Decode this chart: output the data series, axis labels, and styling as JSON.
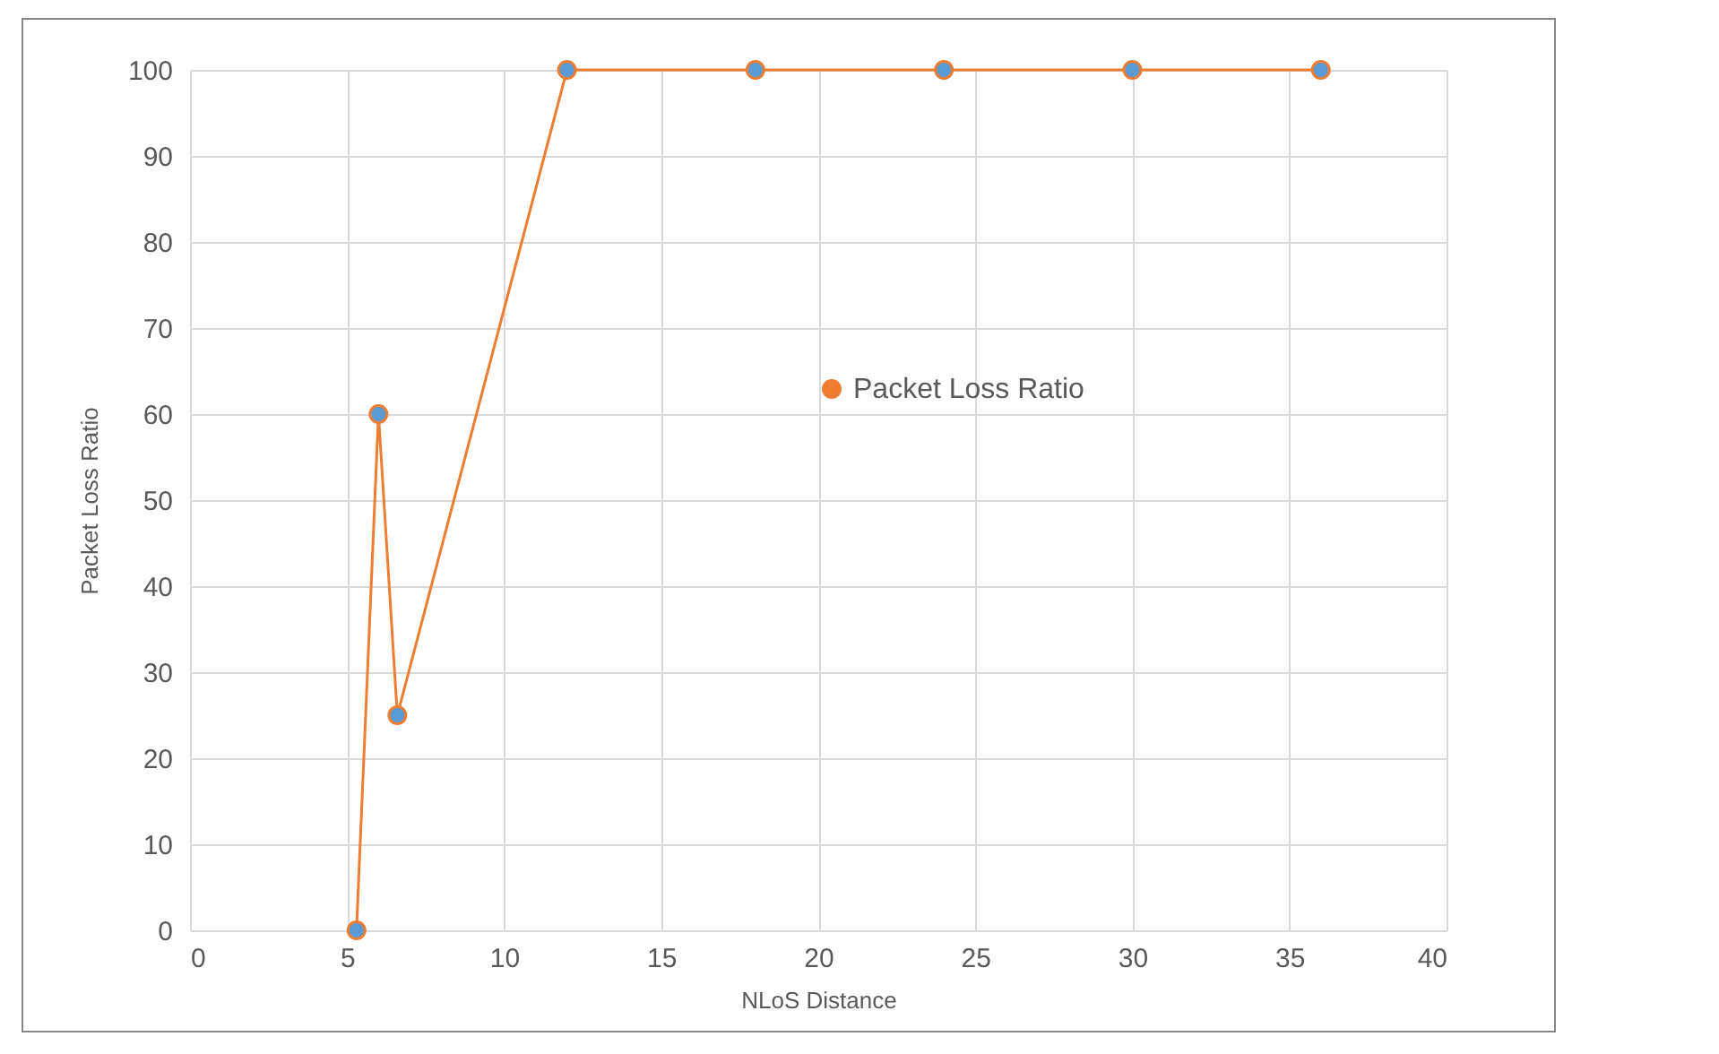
{
  "chart_data": {
    "type": "line",
    "xlabel": "NLoS Distance",
    "ylabel": "Packet Loss Ratio",
    "x": [
      5.3,
      6,
      6.6,
      12,
      18,
      24,
      30,
      36
    ],
    "series": [
      {
        "name": "Packet Loss Ratio",
        "color": "#ed7d31",
        "values": [
          0,
          60,
          25,
          100,
          100,
          100,
          100,
          100
        ]
      }
    ],
    "xlim": [
      0,
      40
    ],
    "xticks": [
      0,
      5,
      10,
      15,
      20,
      25,
      30,
      35,
      40
    ],
    "ylim": [
      0,
      100
    ],
    "yticks": [
      0,
      10,
      20,
      30,
      40,
      50,
      60,
      70,
      80,
      90,
      100
    ],
    "grid": true,
    "legend": "right",
    "marker": "circle",
    "line_style": "solid"
  }
}
